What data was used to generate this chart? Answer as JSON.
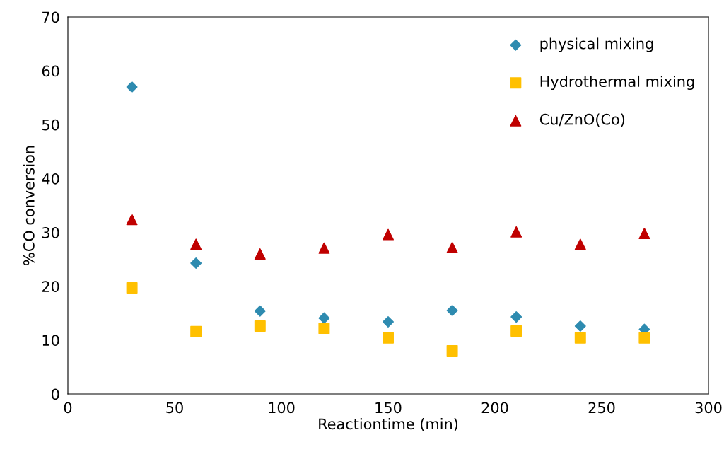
{
  "chart_data": {
    "type": "scatter",
    "xlabel": "Reactiontime (min)",
    "ylabel": "%CO conversion",
    "x": [
      30,
      60,
      90,
      120,
      150,
      180,
      210,
      240,
      270
    ],
    "series": [
      {
        "name": "physical mixing",
        "color": "#2e8bb0",
        "marker": "diamond",
        "values": [
          57,
          24.3,
          15.4,
          14.1,
          13.4,
          15.5,
          14.3,
          12.6,
          12.0
        ]
      },
      {
        "name": "Hydrothermal mixing",
        "color": "#ffc000",
        "marker": "square",
        "values": [
          19.7,
          11.6,
          12.6,
          12.2,
          10.4,
          8.0,
          11.7,
          10.4,
          10.4
        ]
      },
      {
        "name": "Cu/ZnO(Co)",
        "color": "#c00000",
        "marker": "triangle",
        "values": [
          32.4,
          27.8,
          26.0,
          27.1,
          29.6,
          27.2,
          30.1,
          27.8,
          29.8
        ]
      }
    ],
    "xlim": [
      0,
      300
    ],
    "xticks": [
      0,
      50,
      100,
      150,
      200,
      250,
      300
    ],
    "ylim": [
      0,
      70
    ],
    "yticks": [
      0,
      10,
      20,
      30,
      40,
      50,
      60,
      70
    ],
    "grid": false,
    "legend": "top right"
  }
}
